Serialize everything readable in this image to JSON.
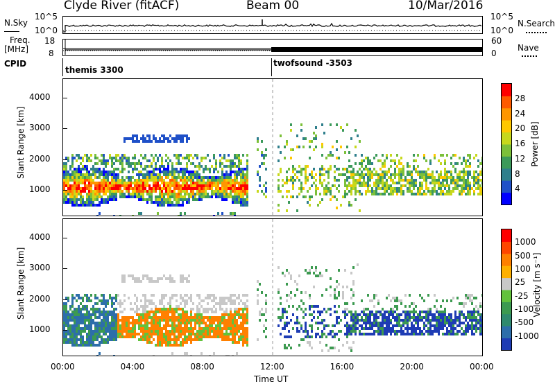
{
  "header": {
    "station": "Clyde River (fitACF)",
    "beam": "Beam 00",
    "date": "10/Mar/2016"
  },
  "nsky_panel": {
    "left_label": "N.Sky",
    "right_label": "N.Search",
    "left_ticks": [
      "10^5",
      "10^0"
    ],
    "right_ticks": [
      "10^5",
      "10^0"
    ]
  },
  "freq_panel": {
    "left_label_1": "Freq.",
    "left_label_2": "[MHz]",
    "right_label": "Nave",
    "left_ticks": [
      "18",
      "8"
    ],
    "right_ticks": [
      "60",
      "0"
    ]
  },
  "cpid_panel": {
    "label": "CPID",
    "programs": [
      {
        "name": "themis 3300",
        "start_hour": 0
      },
      {
        "name": "twofsound -3503",
        "start_hour": 12
      }
    ]
  },
  "chart_data": [
    {
      "type": "heatmap",
      "title": "Power",
      "ylabel": "Slant Range [km]",
      "xlabel": "Time UT",
      "xlim": [
        0,
        24
      ],
      "ylim": [
        180,
        4600
      ],
      "yticks": [
        1000,
        2000,
        3000,
        4000
      ],
      "colorbar_label": "Power [dB]",
      "colorbar_ticks": [
        "28",
        "24",
        "20",
        "16",
        "12",
        "8",
        "4"
      ],
      "colorbar_range": [
        0,
        32
      ],
      "colors": [
        "#0000ff",
        "#1f50c8",
        "#2f7f8c",
        "#3c9a5a",
        "#7cc03a",
        "#c7d81c",
        "#ffc800",
        "#ff9600",
        "#ff5a00",
        "#ff0000"
      ]
    },
    {
      "type": "heatmap",
      "title": "Velocity",
      "ylabel": "Slant Range [km]",
      "xlabel": "Time UT",
      "xticks": [
        "00:00",
        "04:00",
        "08:00",
        "12:00",
        "16:00",
        "20:00",
        "00:00"
      ],
      "xlim": [
        0,
        24
      ],
      "ylim": [
        180,
        4600
      ],
      "yticks": [
        1000,
        2000,
        3000,
        4000
      ],
      "colorbar_label": "Velocity [m s⁻¹]",
      "colorbar_ticks": [
        "1000",
        "500",
        "100",
        "25",
        "-25",
        "-100",
        "-500",
        "-1000"
      ],
      "colors": [
        "#1e3cb4",
        "#2d6eaa",
        "#2f8a6e",
        "#3c9a50",
        "#62c23c",
        "#c8c8c8",
        "#ffb000",
        "#ff8000",
        "#ff4600",
        "#ff0000"
      ]
    }
  ],
  "axis": {
    "xlabel": "Time UT"
  }
}
